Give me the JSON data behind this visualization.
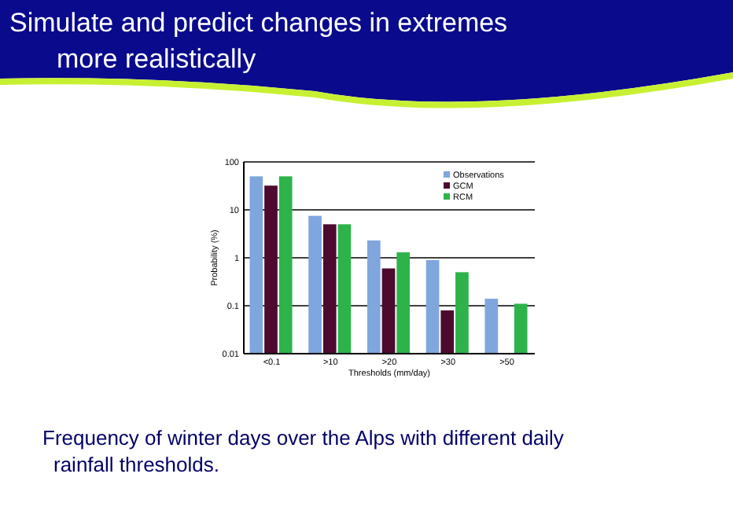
{
  "chart_data": {
    "type": "bar",
    "title": "Simulate and predict changes in extremes more realistically",
    "xlabel": "Thresholds (mm/day)",
    "ylabel": "Probability (%)",
    "categories": [
      "<0.1",
      ">10",
      ">20",
      ">30",
      ">50"
    ],
    "series": [
      {
        "name": "Observations",
        "color": "#7fa6dd",
        "values": [
          50,
          7.5,
          2.3,
          0.9,
          0.14
        ]
      },
      {
        "name": "GCM",
        "color": "#4d0a2e",
        "values": [
          32,
          5,
          0.6,
          0.08,
          null
        ]
      },
      {
        "name": "RCM",
        "color": "#2db34a",
        "values": [
          50,
          5,
          1.3,
          0.5,
          0.11
        ]
      }
    ],
    "log": true,
    "ylim": [
      0.01,
      100
    ],
    "yticks": [
      0.01,
      0.1,
      1,
      10,
      100
    ],
    "grid": "y",
    "legend": "top right",
    "annotations": [
      "Frequency of winter days over the Alps with different daily rainfall thresholds."
    ]
  }
}
